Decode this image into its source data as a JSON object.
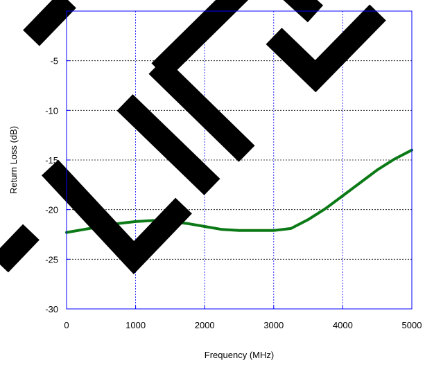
{
  "chart_data": {
    "type": "line",
    "xlabel": "Frequency (MHz)",
    "ylabel": "Return Loss (dB)",
    "xlim": [
      0,
      5000
    ],
    "ylim": [
      -30,
      0
    ],
    "x_ticks": [
      0,
      1000,
      2000,
      3000,
      4000,
      5000
    ],
    "y_ticks": [
      0,
      -5,
      -10,
      -15,
      -20,
      -25,
      -30
    ],
    "x_tick_labels": [
      "0",
      "1000",
      "2000",
      "3000",
      "4000",
      "5000"
    ],
    "y_tick_labels": [
      "0",
      "-5",
      "-10",
      "-15",
      "-20",
      "-25",
      "-30"
    ],
    "grid": true,
    "series": [
      {
        "color": "#0b7a16",
        "x": [
          0,
          250,
          500,
          750,
          1000,
          1250,
          1500,
          1750,
          2000,
          2250,
          2500,
          2750,
          3000,
          3250,
          3500,
          3750,
          4000,
          4250,
          4500,
          4750,
          5000
        ],
        "y": [
          -22.3,
          -22.0,
          -21.7,
          -21.4,
          -21.2,
          -21.1,
          -21.2,
          -21.4,
          -21.7,
          -22.0,
          -22.1,
          -22.1,
          -22.1,
          -21.9,
          -21.0,
          -19.9,
          -18.6,
          -17.3,
          -16.0,
          -14.9,
          -14.0
        ]
      }
    ]
  },
  "watermark": {
    "text": "LIFE"
  }
}
